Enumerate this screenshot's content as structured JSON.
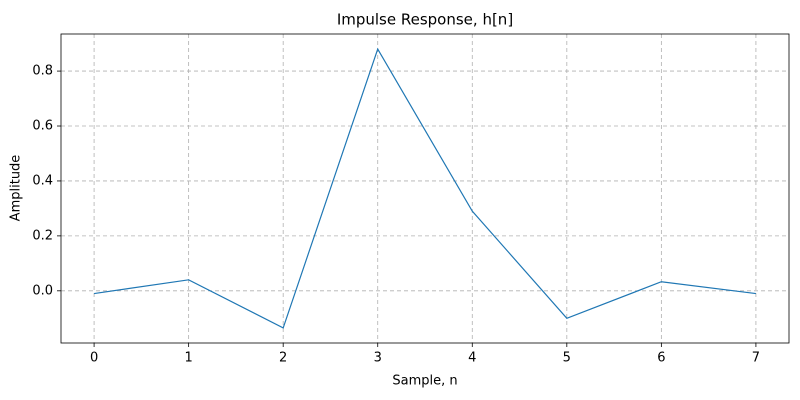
{
  "chart_data": {
    "type": "line",
    "title": "Impulse Response, h[n]",
    "xlabel": "Sample, n",
    "ylabel": "Amplitude",
    "x": [
      0,
      1,
      2,
      3,
      4,
      5,
      6,
      7
    ],
    "series": [
      {
        "name": "h[n]",
        "color": "#1f77b4",
        "values": [
          -0.01,
          0.04,
          -0.135,
          0.88,
          0.29,
          -0.1,
          0.033,
          -0.01
        ]
      }
    ],
    "xlim": [
      -0.35,
      7.35
    ],
    "ylim": [
      -0.19,
      0.935
    ],
    "xticks": [
      0,
      1,
      2,
      3,
      4,
      5,
      6,
      7
    ],
    "yticks": [
      {
        "value": 0,
        "label": "0.0"
      },
      0.2,
      0.4,
      0.6,
      0.8
    ],
    "grid": true
  }
}
